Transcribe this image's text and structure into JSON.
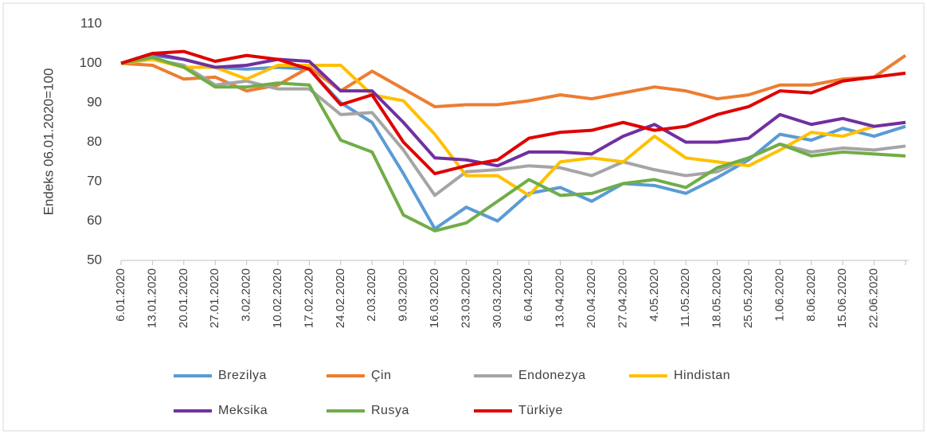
{
  "chart_data": {
    "type": "line",
    "y_label": "Endeks 06.01.2020=100",
    "categories": [
      "6.01.2020",
      "13.01.2020",
      "20.01.2020",
      "27.01.2020",
      "3.02.2020",
      "10.02.2020",
      "17.02.2020",
      "24.02.2020",
      "2.03.2020",
      "9.03.2020",
      "16.03.2020",
      "23.03.2020",
      "30.03.2020",
      "6.04.2020",
      "13.04.2020",
      "20.04.2020",
      "27.04.2020",
      "4.05.2020",
      "11.05.2020",
      "18.05.2020",
      "25.05.2020",
      "1.06.2020",
      "8.06.2020",
      "15.06.2020",
      "22.06.2020",
      null
    ],
    "series": [
      {
        "name": "Brezilya",
        "color": "#5b9bd5",
        "values": [
          100,
          102,
          101,
          99,
          98.5,
          99,
          98.5,
          90,
          85,
          72,
          58,
          63.5,
          60,
          67,
          68.5,
          65,
          69.5,
          69,
          67,
          71,
          75.5,
          82,
          80.5,
          83.5,
          81.5,
          84
        ]
      },
      {
        "name": "Çin",
        "color": "#ed7d31",
        "values": [
          100,
          99.5,
          96,
          96.5,
          93,
          94.5,
          99,
          93,
          98,
          93.5,
          89,
          89.5,
          89.5,
          90.5,
          92,
          91,
          92.5,
          94,
          93,
          91,
          92,
          94.5,
          94.5,
          96,
          96.5,
          102
        ]
      },
      {
        "name": "Endonezya",
        "color": "#a5a5a5",
        "values": [
          100,
          101,
          99.5,
          94.5,
          95.5,
          93.5,
          93.5,
          87,
          87.5,
          78,
          66.5,
          72.5,
          73,
          74,
          73.5,
          71.5,
          75,
          73,
          71.5,
          72.5,
          76,
          79.5,
          77.5,
          78.5,
          78,
          79
        ]
      },
      {
        "name": "Hindistan",
        "color": "#ffc000",
        "values": [
          100,
          101,
          99,
          99,
          96,
          99.5,
          99.5,
          99.5,
          92,
          90.5,
          82,
          71.5,
          71.5,
          66.5,
          75,
          76,
          75,
          81.5,
          76,
          75,
          74,
          78,
          82.5,
          81.5,
          84,
          85
        ]
      },
      {
        "name": "Meksika",
        "color": "#7030a0",
        "values": [
          100,
          102.5,
          101,
          99,
          99.5,
          101,
          100.5,
          93,
          93,
          85,
          76,
          75.5,
          74,
          77.5,
          77.5,
          77,
          81.5,
          84.5,
          80,
          80,
          81,
          87,
          84.5,
          86,
          84,
          85
        ]
      },
      {
        "name": "Rusya",
        "color": "#70ad47",
        "values": [
          100,
          101.5,
          99,
          94,
          94,
          95,
          94.5,
          80.5,
          77.5,
          61.5,
          57.5,
          59.5,
          65,
          70.5,
          66.5,
          67,
          69.5,
          70.5,
          68.5,
          73.5,
          76,
          79.5,
          76.5,
          77.5,
          77,
          76.5
        ]
      },
      {
        "name": "Türkiye",
        "color": "#e00000",
        "values": [
          100,
          102.5,
          103,
          100.5,
          102,
          101,
          98.5,
          89.5,
          92,
          80,
          72,
          74,
          75.5,
          81,
          82.5,
          83,
          85,
          83,
          84,
          87,
          89,
          93,
          92.5,
          95.5,
          96.5,
          97.5
        ]
      }
    ],
    "ylim": [
      50,
      110
    ],
    "yticks": [
      50,
      60,
      70,
      80,
      90,
      100,
      110
    ],
    "grid": false,
    "legend": "bottom"
  }
}
